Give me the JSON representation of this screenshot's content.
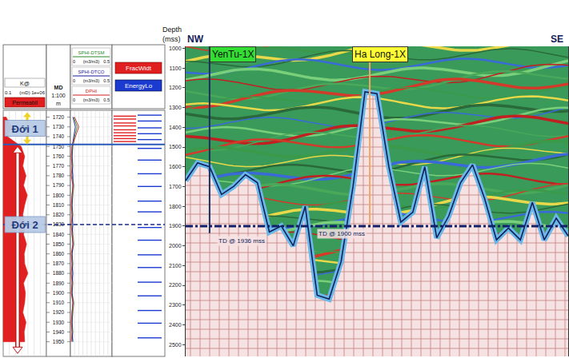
{
  "well_log": {
    "md_header": [
      "MD",
      "1:100",
      "m"
    ],
    "md_range": [
      1713,
      1965
    ],
    "md_ticks": [
      1720,
      1730,
      1740,
      1750,
      1760,
      1770,
      1780,
      1790,
      1800,
      1810,
      1820,
      1830,
      1840,
      1850,
      1860,
      1870,
      1880,
      1890,
      1900,
      1910,
      1920,
      1930,
      1940,
      1950
    ],
    "samples_md": [
      1720,
      1730,
      1740,
      1750,
      1760,
      1770,
      1780,
      1790,
      1800,
      1810,
      1820,
      1830,
      1840,
      1850,
      1860,
      1870,
      1880,
      1890,
      1900,
      1910,
      1920,
      1930,
      1940,
      1950
    ],
    "permeability": {
      "name": "K@",
      "unit": "(mD)",
      "scale": [
        0.1,
        {
          "value": 1000000,
          "label": "1e+06"
        }
      ],
      "label": "Permeabil",
      "color": "#e02020",
      "values": [
        0.3,
        2,
        0.5,
        80,
        300,
        150,
        500,
        200,
        800,
        300,
        150,
        400,
        200,
        600,
        250,
        300,
        1000,
        200,
        400,
        300,
        150,
        500,
        250,
        300
      ]
    },
    "porosity": {
      "unit": "(m3/m3)",
      "scale": [
        0,
        0.5
      ],
      "curves": [
        {
          "name": "SPHI-DTSM",
          "color": "#2a8a2a",
          "values": [
            0.04,
            0.08,
            0.05,
            0.03,
            0.02,
            0.03,
            0.02,
            0.04,
            0.03,
            0.02,
            0.03,
            0.02,
            0.03,
            0.04,
            0.02,
            0.03,
            0.02,
            0.03,
            0.02,
            0.04,
            0.03,
            0.02,
            0.03,
            0.02
          ]
        },
        {
          "name": "SPHI-DTCO",
          "color": "#1a1a9a",
          "values": [
            0.03,
            0.06,
            0.04,
            0.02,
            0.02,
            0.02,
            0.03,
            0.03,
            0.02,
            0.02,
            0.02,
            0.03,
            0.02,
            0.03,
            0.02,
            0.02,
            0.03,
            0.02,
            0.02,
            0.03,
            0.02,
            0.02,
            0.02,
            0.03
          ]
        },
        {
          "name": "DPHI",
          "color": "#d02020",
          "values": [
            0.05,
            0.1,
            0.06,
            0.02,
            0.01,
            0.02,
            0.01,
            0.03,
            0.02,
            0.01,
            0.02,
            0.01,
            0.02,
            0.03,
            0.01,
            0.02,
            0.01,
            0.02,
            0.01,
            0.03,
            0.02,
            0.01,
            0.02,
            0.01
          ]
        }
      ]
    },
    "fracture": {
      "label": "FracWidt",
      "color": "#e02020",
      "md": [
        1719,
        1722,
        1726,
        1729,
        1733,
        1736,
        1739,
        1742,
        1745
      ]
    },
    "energy_loss": {
      "label": "EnergyLo",
      "color": "#1a3ad0",
      "md": [
        1718,
        1724,
        1731,
        1737,
        1743,
        1752,
        1764,
        1778,
        1791,
        1806,
        1817,
        1833,
        1846,
        1861,
        1874,
        1889,
        1903,
        1918,
        1931,
        1946
      ]
    },
    "zones": [
      {
        "label": "Đới 1",
        "top": 1715,
        "bottom": 1748
      },
      {
        "label": "Đới 2",
        "top": 1750,
        "bottom": 1962,
        "marker": 1830
      }
    ]
  },
  "chart_data": {
    "type": "seismic_section",
    "y_label": "Depth (mss)",
    "left_label": "NW",
    "right_label": "SE",
    "ylim": [
      990,
      2560
    ],
    "yticks": [
      1000,
      1100,
      1200,
      1300,
      1400,
      1500,
      1600,
      1700,
      1800,
      1900,
      2000,
      2100,
      2200,
      2300,
      2400,
      2500
    ],
    "basement_top": [
      1670,
      1580,
      1600,
      1740,
      1700,
      1640,
      1680,
      1930,
      1900,
      2000,
      1800,
      2250,
      2270,
      2080,
      1700,
      1220,
      1230,
      1600,
      1880,
      1830,
      1600,
      1960,
      1850,
      1680,
      1590,
      1760,
      1970,
      1910,
      1970,
      1780,
      1970,
      1860,
      1950
    ],
    "reference_depth": 1900,
    "wells": [
      {
        "name": "YenTu-1X",
        "position": 2,
        "td": 1936,
        "td_label": "TD @ 1936 mss",
        "color": "#1b2f5e"
      },
      {
        "name": "Ha Long-1X",
        "position": 15.4,
        "td": 1900,
        "td_label": "TD @ 1900 mss",
        "color": "#f0a868"
      }
    ]
  }
}
